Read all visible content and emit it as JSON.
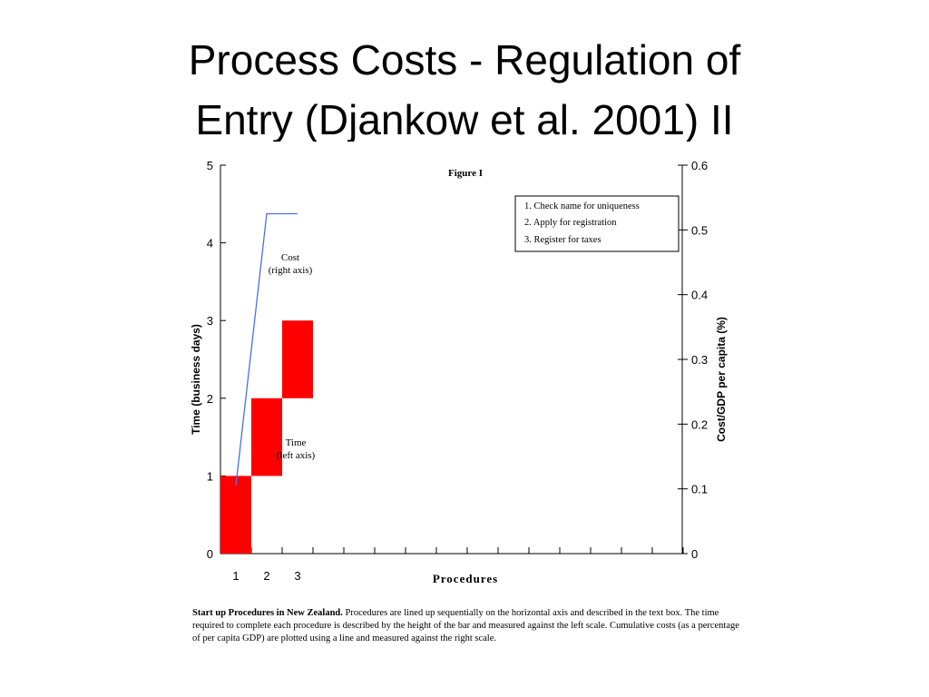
{
  "slide": {
    "title_line1": "Process Costs - Regulation of",
    "title_line2": "Entry (Djankow et al. 2001) II"
  },
  "figure": {
    "label": "Figure I",
    "legend_box": [
      "1.   Check name for uniqueness",
      "2.   Apply for registration",
      "3.   Register for taxes"
    ],
    "cost_annotation": [
      "Cost",
      "(right axis)"
    ],
    "time_annotation": [
      "Time",
      "(left axis)"
    ],
    "caption_bold": "Start up Procedures in New Zealand.",
    "caption_text": "  Procedures are lined up sequentially on the horizontal axis and described in the text box. The time required to complete each procedure is described by the height of the bar and measured against the left scale.  Cumulative costs (as a percentage of per capita GDP) are plotted using a line and measured against the right scale.",
    "colors": {
      "bar": "#ff0000",
      "cost_line": "#4a6fe8",
      "axis": "#000000"
    }
  },
  "chart_data": {
    "type": "bar",
    "xlabel": "Procedures",
    "ylabel": "Time (business days)",
    "y2label": "Cost/GDP per capita (%)",
    "ylim": [
      0,
      5
    ],
    "y2lim": [
      0,
      0.6
    ],
    "yticks": [
      "0",
      "1",
      "2",
      "3",
      "4",
      "5"
    ],
    "y2ticks": [
      "0",
      "0.1",
      "0.2",
      "0.3",
      "0.4",
      "0.5",
      "0.6"
    ],
    "xtick_labels": [
      "1",
      "2",
      "3"
    ],
    "x_tick_count": 15,
    "grid": false,
    "legend": "top-right",
    "bars": [
      {
        "procedure": 1,
        "start_day": 0,
        "end_day": 1
      },
      {
        "procedure": 2,
        "start_day": 1,
        "end_day": 2
      },
      {
        "procedure": 3,
        "start_day": 2,
        "end_day": 3
      }
    ],
    "cost_series": {
      "name": "Cost",
      "points": [
        {
          "x": 0.5,
          "y": 0.105
        },
        {
          "x": 1.5,
          "y": 0.525
        },
        {
          "x": 2.5,
          "y": 0.525
        }
      ]
    }
  }
}
